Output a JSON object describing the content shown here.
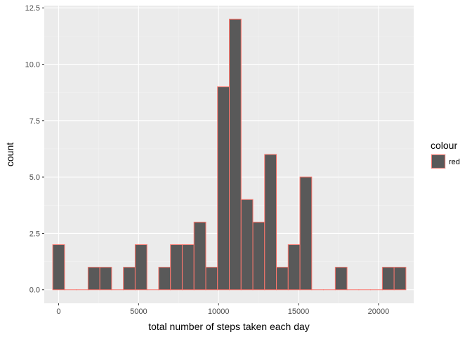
{
  "chart_data": {
    "type": "bar",
    "subtype": "histogram",
    "xlabel": "total number of steps taken each day",
    "ylabel": "count",
    "xlim": [
      -900,
      22200
    ],
    "ylim": [
      -0.6,
      12.6
    ],
    "x_ticks": [
      0,
      5000,
      10000,
      15000,
      20000
    ],
    "x_tick_labels": [
      "0",
      "5000",
      "10000",
      "15000",
      "20000"
    ],
    "y_ticks": [
      0,
      2.5,
      5,
      7.5,
      10,
      12.5
    ],
    "y_tick_labels": [
      "0.0",
      "2.5",
      "5.0",
      "7.5",
      "10.0",
      "12.5"
    ],
    "grid": true,
    "bin_width": 736,
    "bin_start": -368,
    "counts": [
      2,
      0,
      0,
      1,
      1,
      0,
      1,
      2,
      0,
      1,
      2,
      2,
      3,
      1,
      9,
      12,
      4,
      3,
      6,
      1,
      2,
      5,
      0,
      0,
      1,
      0,
      0,
      0,
      1,
      1
    ],
    "fill": "#595959",
    "outline": "#f8766d",
    "legend": {
      "title": "colour",
      "placement": "right",
      "items": [
        {
          "label": "red",
          "fill": "#595959",
          "outline": "#f8766d"
        }
      ]
    }
  },
  "colors": {
    "panel": "#ebebeb",
    "grid_major": "#ffffff",
    "grid_minor": "#f3f3f3"
  }
}
